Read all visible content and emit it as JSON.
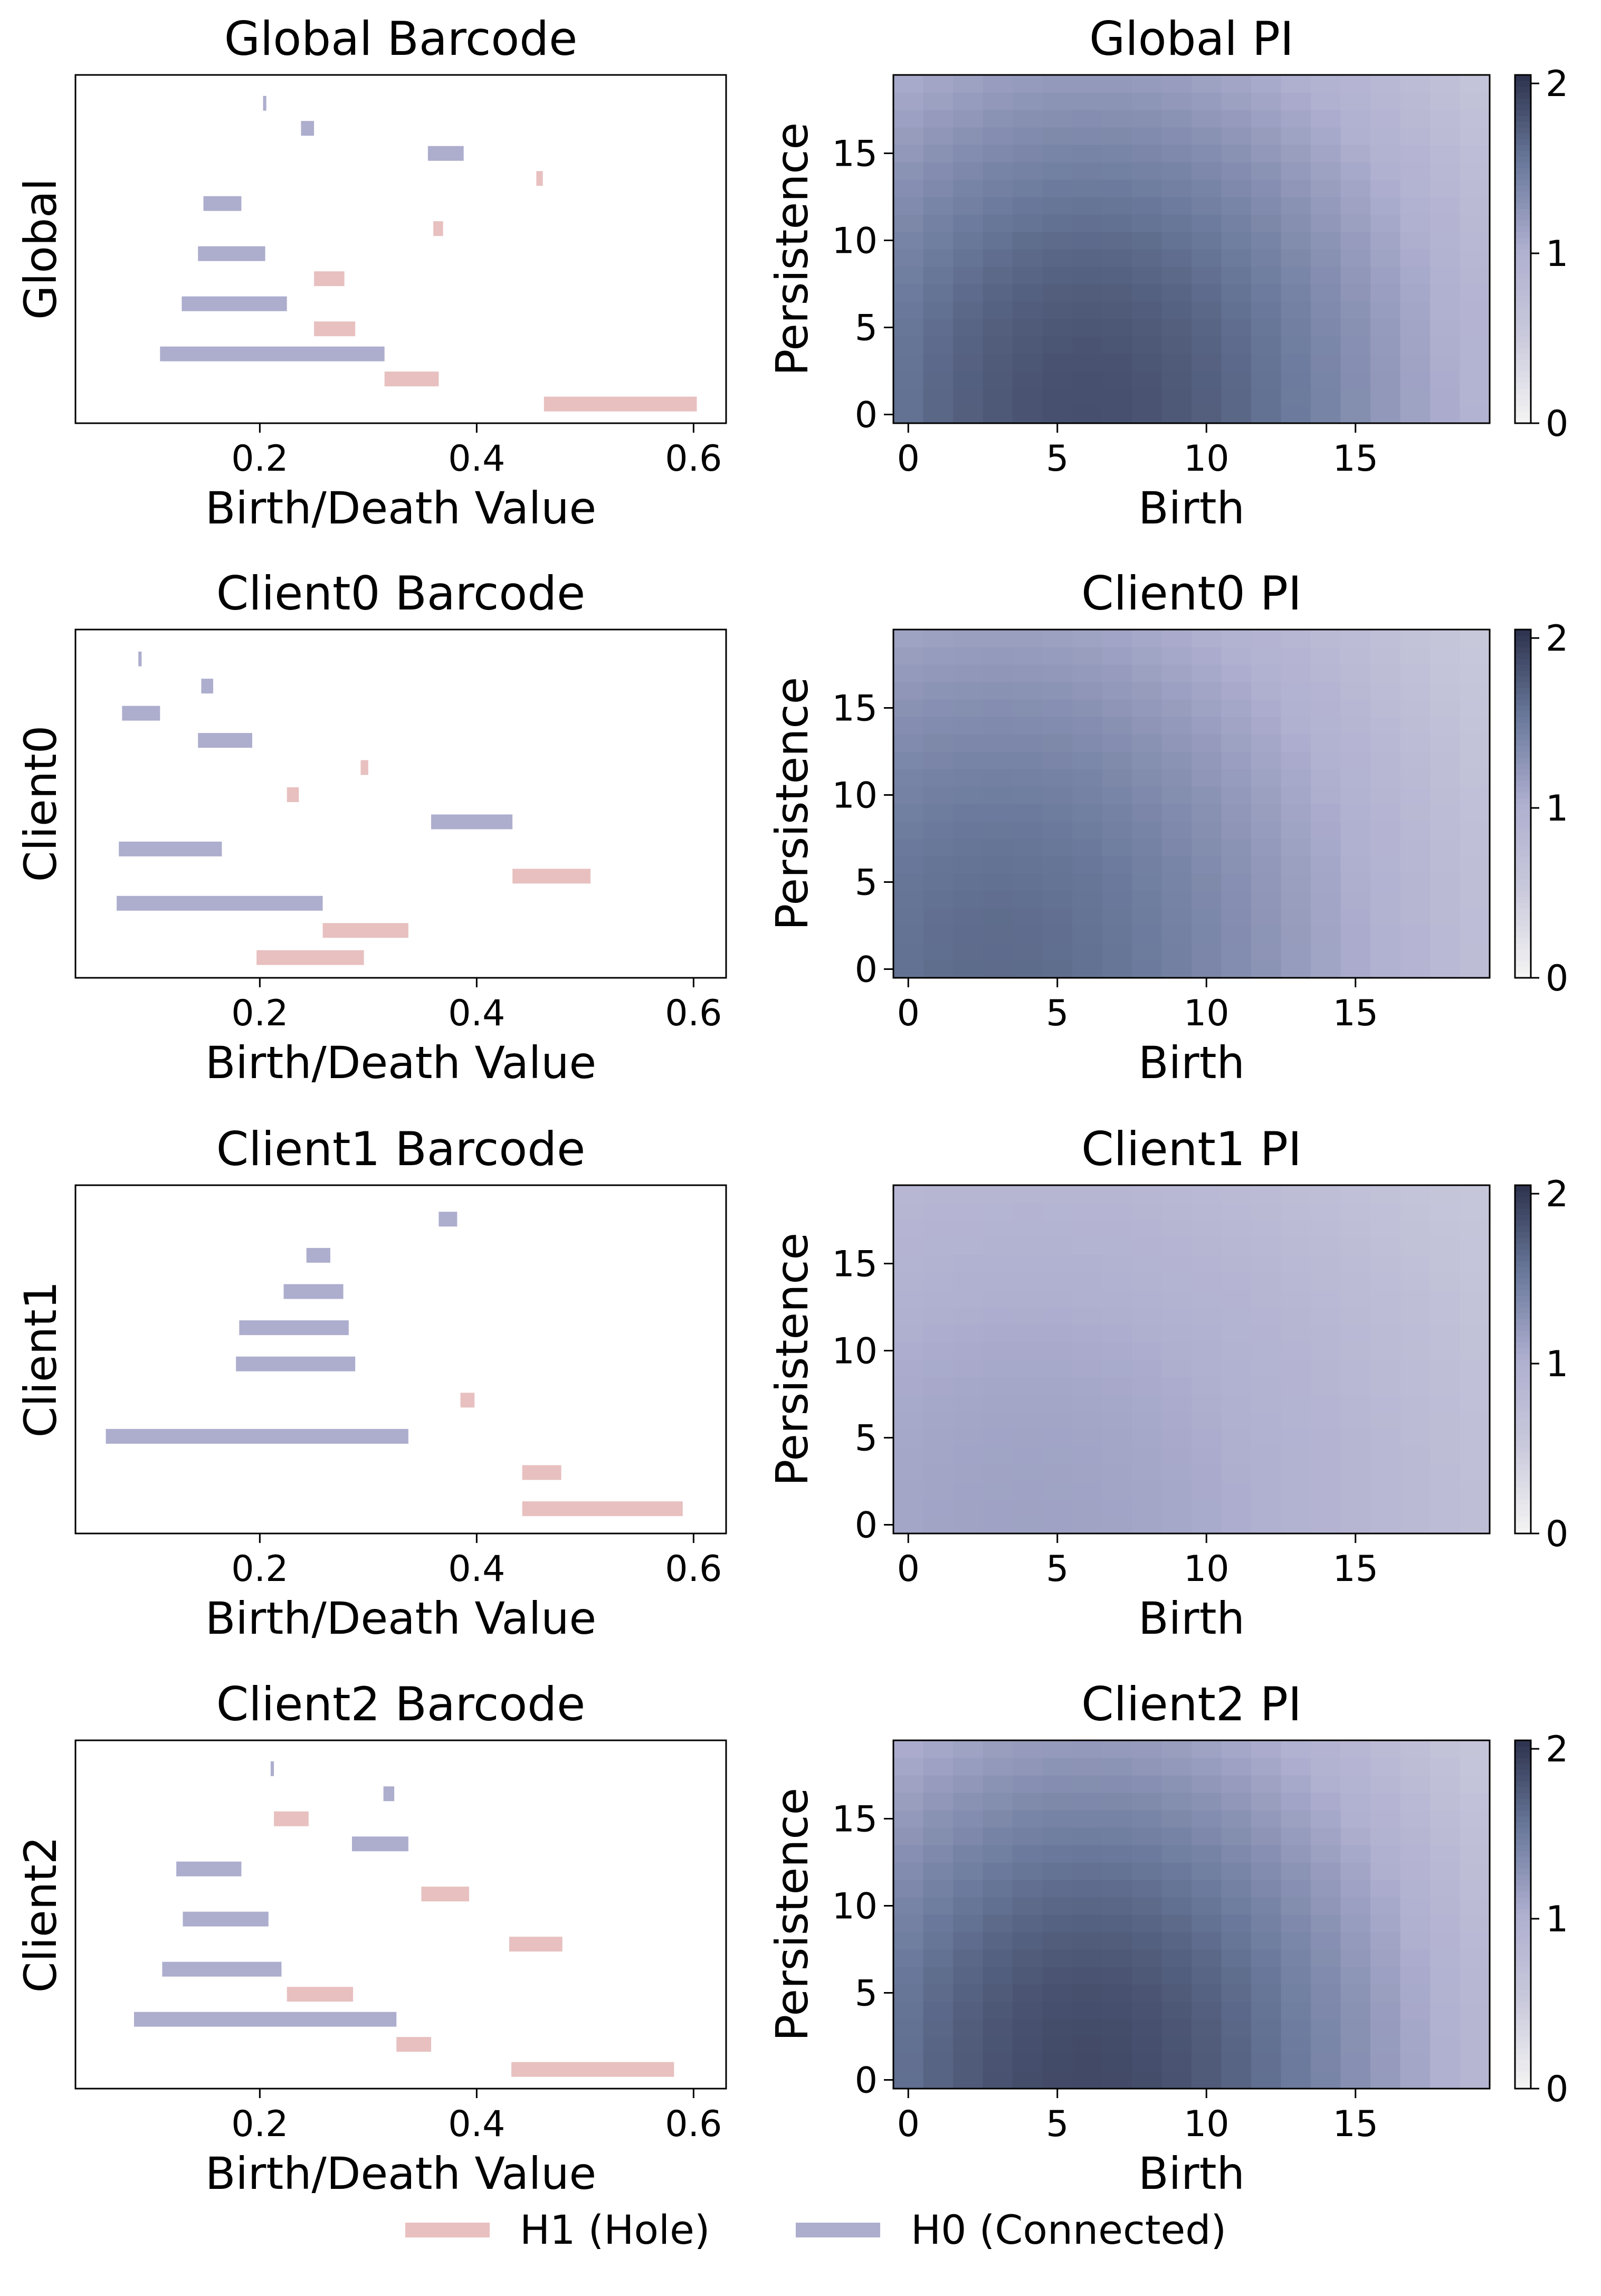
{
  "chart_data": [
    {
      "type": "barcode",
      "title": "Global Barcode",
      "xlabel": "Birth/Death Value",
      "ylabel": "Global",
      "xlim": [
        0.03,
        0.63
      ],
      "xticks": [
        0.2,
        0.4,
        0.6
      ],
      "xtick_labels": [
        "0.2",
        "0.4",
        "0.6"
      ],
      "bars": [
        {
          "dim": "H0",
          "birth": 0.203,
          "death": 0.206
        },
        {
          "dim": "H0",
          "birth": 0.238,
          "death": 0.25
        },
        {
          "dim": "H0",
          "birth": 0.355,
          "death": 0.388
        },
        {
          "dim": "H1",
          "birth": 0.455,
          "death": 0.461
        },
        {
          "dim": "H0",
          "birth": 0.148,
          "death": 0.183
        },
        {
          "dim": "H1",
          "birth": 0.36,
          "death": 0.369
        },
        {
          "dim": "H0",
          "birth": 0.143,
          "death": 0.205
        },
        {
          "dim": "H1",
          "birth": 0.25,
          "death": 0.278
        },
        {
          "dim": "H0",
          "birth": 0.128,
          "death": 0.225
        },
        {
          "dim": "H1",
          "birth": 0.25,
          "death": 0.288
        },
        {
          "dim": "H0",
          "birth": 0.108,
          "death": 0.315
        },
        {
          "dim": "H1",
          "birth": 0.315,
          "death": 0.365
        },
        {
          "dim": "H1",
          "birth": 0.462,
          "death": 0.603
        }
      ]
    },
    {
      "type": "heatmap",
      "title": "Global PI",
      "xlabel": "Birth",
      "ylabel": "Persistence",
      "grid_size": 20,
      "colorbar_ticks": [
        "0",
        "1",
        "2"
      ],
      "vmin": 0,
      "vmax": 2.05,
      "value_model": {
        "base": 1.85,
        "birth_center": 6,
        "birth_width": 16,
        "persistence_width": 30
      }
    },
    {
      "type": "barcode",
      "title": "Client0 Barcode",
      "xlabel": "Birth/Death Value",
      "ylabel": "Client0",
      "xlim": [
        0.03,
        0.63
      ],
      "xticks": [
        0.2,
        0.4,
        0.6
      ],
      "xtick_labels": [
        "0.2",
        "0.4",
        "0.6"
      ],
      "bars": [
        {
          "dim": "H0",
          "birth": 0.088,
          "death": 0.091
        },
        {
          "dim": "H0",
          "birth": 0.146,
          "death": 0.157
        },
        {
          "dim": "H0",
          "birth": 0.073,
          "death": 0.108
        },
        {
          "dim": "H0",
          "birth": 0.143,
          "death": 0.193
        },
        {
          "dim": "H1",
          "birth": 0.293,
          "death": 0.3
        },
        {
          "dim": "H1",
          "birth": 0.225,
          "death": 0.236
        },
        {
          "dim": "H0",
          "birth": 0.358,
          "death": 0.433
        },
        {
          "dim": "H0",
          "birth": 0.07,
          "death": 0.165
        },
        {
          "dim": "H1",
          "birth": 0.433,
          "death": 0.505
        },
        {
          "dim": "H0",
          "birth": 0.068,
          "death": 0.258
        },
        {
          "dim": "H1",
          "birth": 0.258,
          "death": 0.337
        },
        {
          "dim": "H1",
          "birth": 0.197,
          "death": 0.296
        }
      ]
    },
    {
      "type": "heatmap",
      "title": "Client0 PI",
      "xlabel": "Birth",
      "ylabel": "Persistence",
      "grid_size": 20,
      "colorbar_ticks": [
        "0",
        "1",
        "2"
      ],
      "vmin": 0,
      "vmax": 2.05,
      "value_model": {
        "base": 1.65,
        "birth_center": 3,
        "birth_width": 18,
        "persistence_width": 33
      }
    },
    {
      "type": "barcode",
      "title": "Client1 Barcode",
      "xlabel": "Birth/Death Value",
      "ylabel": "Client1",
      "xlim": [
        0.03,
        0.63
      ],
      "xticks": [
        0.2,
        0.4,
        0.6
      ],
      "xtick_labels": [
        "0.2",
        "0.4",
        "0.6"
      ],
      "bars": [
        {
          "dim": "H0",
          "birth": 0.365,
          "death": 0.382
        },
        {
          "dim": "H0",
          "birth": 0.243,
          "death": 0.265
        },
        {
          "dim": "H0",
          "birth": 0.222,
          "death": 0.277
        },
        {
          "dim": "H0",
          "birth": 0.181,
          "death": 0.282
        },
        {
          "dim": "H0",
          "birth": 0.178,
          "death": 0.288
        },
        {
          "dim": "H1",
          "birth": 0.385,
          "death": 0.398
        },
        {
          "dim": "H0",
          "birth": 0.058,
          "death": 0.337
        },
        {
          "dim": "H1",
          "birth": 0.442,
          "death": 0.478
        },
        {
          "dim": "H1",
          "birth": 0.442,
          "death": 0.59
        }
      ]
    },
    {
      "type": "heatmap",
      "title": "Client1 PI",
      "xlabel": "Birth",
      "ylabel": "Persistence",
      "grid_size": 20,
      "colorbar_ticks": [
        "0",
        "1",
        "2"
      ],
      "vmin": 0,
      "vmax": 2.05,
      "value_model": {
        "base": 1.15,
        "birth_center": 4,
        "birth_width": 22,
        "persistence_width": 38
      }
    },
    {
      "type": "barcode",
      "title": "Client2 Barcode",
      "xlabel": "Birth/Death Value",
      "ylabel": "Client2",
      "xlim": [
        0.03,
        0.63
      ],
      "xticks": [
        0.2,
        0.4,
        0.6
      ],
      "xtick_labels": [
        "0.2",
        "0.4",
        "0.6"
      ],
      "bars": [
        {
          "dim": "H0",
          "birth": 0.21,
          "death": 0.213
        },
        {
          "dim": "H0",
          "birth": 0.314,
          "death": 0.324
        },
        {
          "dim": "H1",
          "birth": 0.213,
          "death": 0.245
        },
        {
          "dim": "H0",
          "birth": 0.285,
          "death": 0.337
        },
        {
          "dim": "H0",
          "birth": 0.123,
          "death": 0.183
        },
        {
          "dim": "H1",
          "birth": 0.349,
          "death": 0.393
        },
        {
          "dim": "H0",
          "birth": 0.129,
          "death": 0.208
        },
        {
          "dim": "H1",
          "birth": 0.43,
          "death": 0.479
        },
        {
          "dim": "H0",
          "birth": 0.11,
          "death": 0.22
        },
        {
          "dim": "H1",
          "birth": 0.225,
          "death": 0.286
        },
        {
          "dim": "H0",
          "birth": 0.084,
          "death": 0.326
        },
        {
          "dim": "H1",
          "birth": 0.326,
          "death": 0.358
        },
        {
          "dim": "H1",
          "birth": 0.432,
          "death": 0.582
        }
      ]
    },
    {
      "type": "heatmap",
      "title": "Client2 PI",
      "xlabel": "Birth",
      "ylabel": "Persistence",
      "grid_size": 20,
      "colorbar_ticks": [
        "0",
        "1",
        "2"
      ],
      "vmin": 0,
      "vmax": 2.05,
      "value_model": {
        "base": 1.9,
        "birth_center": 6,
        "birth_width": 15,
        "persistence_width": 29
      }
    }
  ],
  "pi_axis": {
    "xticks": [
      0,
      5,
      10,
      15
    ],
    "xtick_labels": [
      "0",
      "5",
      "10",
      "15"
    ],
    "yticks": [
      0,
      5,
      10,
      15
    ],
    "ytick_labels": [
      "0",
      "5",
      "10",
      "15"
    ]
  },
  "legend": {
    "placement": "bottom-center",
    "items": [
      {
        "key": "H1",
        "label": "H1 (Hole)",
        "color": "#e8c0c0"
      },
      {
        "key": "H0",
        "label": "H0 (Connected)",
        "color": "#adadce"
      }
    ]
  },
  "colors": {
    "h0": "#adadce",
    "h1": "#e8c0c0",
    "colormap": [
      "#f3f3f3",
      "#c9c9dc",
      "#afafd0",
      "#6b7a9c",
      "#2f3550"
    ]
  }
}
